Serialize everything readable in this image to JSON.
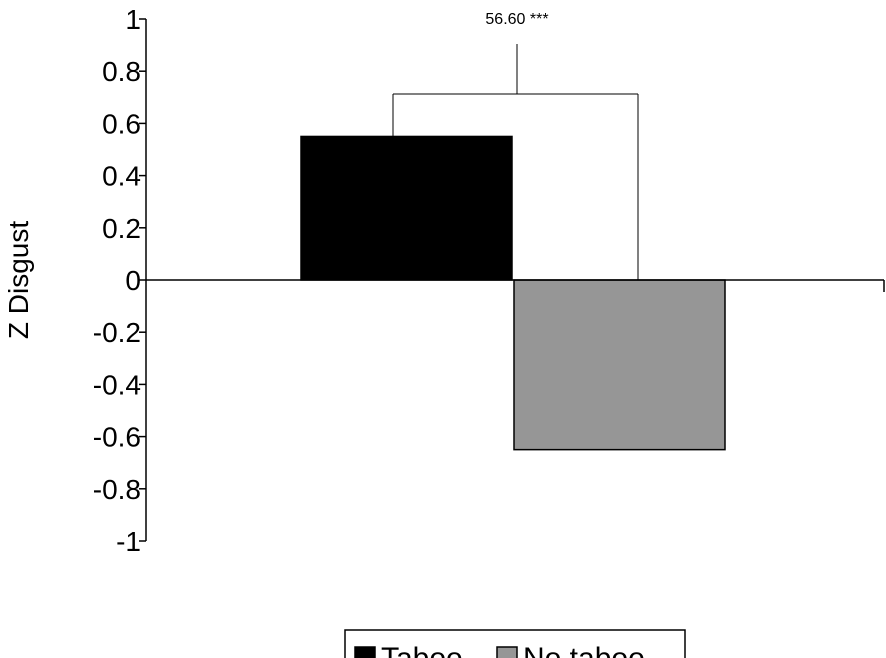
{
  "chart_data": {
    "type": "bar",
    "title": "",
    "xlabel": "",
    "ylabel": "Z Disgust",
    "ylim": [
      -1,
      1
    ],
    "yticks": [
      "1",
      "0.8",
      "0.6",
      "0.4",
      "0.2",
      "0",
      "-0.2",
      "-0.4",
      "-0.6",
      "-0.8",
      "-1"
    ],
    "grid": false,
    "legend_position": "bottom",
    "series": [
      {
        "name": "Taboo",
        "value": 0.55,
        "color": "#000000"
      },
      {
        "name": "No taboo",
        "value": -0.65,
        "color": "#969696"
      }
    ],
    "annotation": {
      "text": "56.60 ***"
    }
  }
}
